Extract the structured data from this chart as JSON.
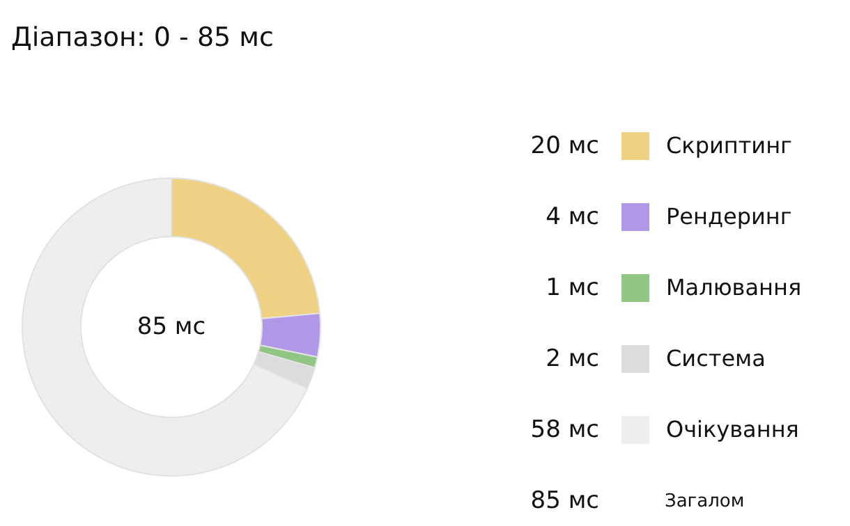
{
  "chart_data": {
    "type": "donut",
    "title": "Діапазон: 0 - 85 мс",
    "categories": [
      "Скриптинг",
      "Рендеринг",
      "Малювання",
      "Система",
      "Очікування"
    ],
    "values": [
      20,
      4,
      1,
      2,
      58
    ],
    "colors": [
      "#eed182",
      "#b097e8",
      "#90c584",
      "#dcdcdc",
      "#eeeeee"
    ],
    "value_labels": [
      "20 мс",
      "4 мс",
      "1 мс",
      "2 мс",
      "58 мс"
    ],
    "annotations": [
      "85 мс",
      "85 мс",
      "Загалом"
    ],
    "legend": "right"
  }
}
